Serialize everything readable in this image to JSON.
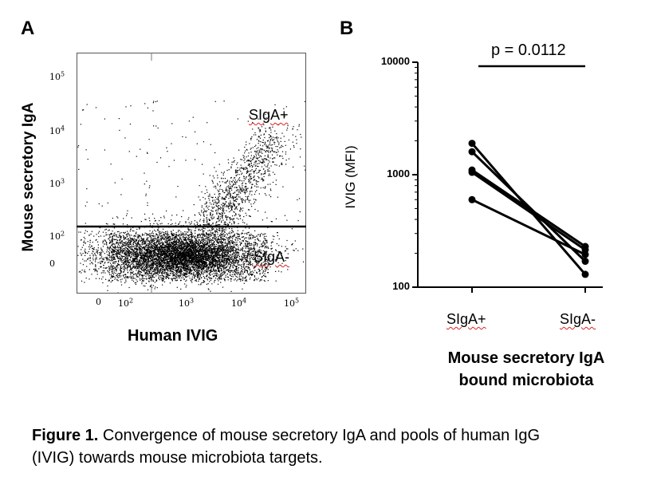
{
  "panel_a": {
    "label": "A",
    "y_axis_title": "Mouse secretory IgA",
    "x_axis_title": "Human IVIG",
    "gate_positive": "SIgA+",
    "gate_negative": "SIgA-"
  },
  "panel_b": {
    "label": "B",
    "p_value": "p = 0.0112"
  },
  "caption": {
    "prefix": "Figure 1.",
    "text": " Convergence of mouse secretory IgA and pools of human IgG (IVIG) towards mouse microbiota targets."
  },
  "colors": {
    "ink": "#000000",
    "spell_underline": "#dd2222"
  },
  "chart_data": [
    {
      "type": "scatter",
      "subtype": "flow-cytometry-dot-plot",
      "xlabel": "Human IVIG",
      "ylabel": "Mouse secretory IgA",
      "x_ticks": [
        {
          "base": "0",
          "exp": ""
        },
        {
          "base": "10",
          "exp": "2"
        },
        {
          "base": "10",
          "exp": "3"
        },
        {
          "base": "10",
          "exp": "4"
        },
        {
          "base": "10",
          "exp": "5"
        }
      ],
      "y_ticks": [
        {
          "base": "0",
          "exp": ""
        },
        {
          "base": "10",
          "exp": "2"
        },
        {
          "base": "10",
          "exp": "3"
        },
        {
          "base": "10",
          "exp": "4"
        },
        {
          "base": "10",
          "exp": "5"
        }
      ],
      "gates": [
        "SIgA+",
        "SIgA-"
      ],
      "gate_threshold_y": 140,
      "grid": false
    },
    {
      "type": "line",
      "subtype": "paired-dot-plot",
      "categories": [
        "SIgA+",
        "SIgA-"
      ],
      "ylabel": "IVIG (MFI)",
      "xlabel_lines": [
        "Mouse secretory IgA",
        "bound microbiota"
      ],
      "yscale": "log",
      "ylim": [
        100,
        10000
      ],
      "y_tick_labels": [
        "100",
        "1000",
        "10000"
      ],
      "pairs": [
        [
          1900,
          130
        ],
        [
          1600,
          170
        ],
        [
          1100,
          230
        ],
        [
          1050,
          215
        ],
        [
          600,
          195
        ]
      ],
      "annotation": "p = 0.0112",
      "grid": false
    }
  ]
}
